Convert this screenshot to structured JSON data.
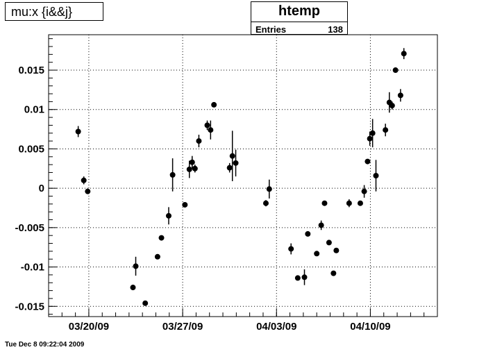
{
  "title_box": {
    "text": "mu:x {i&&j}"
  },
  "stats_box": {
    "name": "htemp",
    "entries_label": "Entries",
    "entries_value": "138"
  },
  "timestamp": "Tue Dec  8 09:22:04 2009",
  "chart_data": {
    "type": "scatter",
    "title": "mu:x {i&&j}",
    "xlabel": "",
    "ylabel": "",
    "grid": true,
    "x_axis": {
      "type": "date",
      "range": [
        "2009-03-17",
        "2009-04-15"
      ],
      "tick_labels": [
        "03/20/09",
        "03/27/09",
        "04/03/09",
        "04/10/09"
      ],
      "tick_dates": [
        "2009-03-20",
        "2009-03-27",
        "2009-04-03",
        "2009-04-10"
      ]
    },
    "ylim": [
      -0.0163,
      0.0195
    ],
    "y_tick_labels": [
      "-0.015",
      "-0.01",
      "-0.005",
      "0",
      "0.005",
      "0.01",
      "0.015"
    ],
    "y_ticks": [
      -0.015,
      -0.01,
      -0.005,
      0,
      0.005,
      0.01,
      0.015
    ],
    "points": [
      {
        "x": "2009-03-19 05:00",
        "y": 0.0072,
        "err": 0.0007
      },
      {
        "x": "2009-03-19 15:00",
        "y": 0.001,
        "err": 0.0005
      },
      {
        "x": "2009-03-19 22:00",
        "y": -0.0004,
        "err": 0.0003
      },
      {
        "x": "2009-03-23 07:00",
        "y": -0.0126,
        "err": 0.0002
      },
      {
        "x": "2009-03-23 12:00",
        "y": -0.0099,
        "err": 0.0012
      },
      {
        "x": "2009-03-24 05:00",
        "y": -0.0146,
        "err": 0.0002
      },
      {
        "x": "2009-03-25 03:00",
        "y": -0.0087,
        "err": 0.0003
      },
      {
        "x": "2009-03-25 10:00",
        "y": -0.0063,
        "err": 0.0002
      },
      {
        "x": "2009-03-25 23:00",
        "y": -0.0035,
        "err": 0.0011
      },
      {
        "x": "2009-03-26 06:00",
        "y": 0.0017,
        "err": 0.0021
      },
      {
        "x": "2009-03-27 04:00",
        "y": -0.0021,
        "err": 0.0003
      },
      {
        "x": "2009-03-27 12:00",
        "y": 0.0024,
        "err": 0.0011
      },
      {
        "x": "2009-03-27 17:00",
        "y": 0.0033,
        "err": 0.0008
      },
      {
        "x": "2009-03-27 22:00",
        "y": 0.0025,
        "err": 0.0005
      },
      {
        "x": "2009-03-28 05:00",
        "y": 0.006,
        "err": 0.0008
      },
      {
        "x": "2009-03-28 20:00",
        "y": 0.008,
        "err": 0.0006
      },
      {
        "x": "2009-03-29 02:00",
        "y": 0.0074,
        "err": 0.0012
      },
      {
        "x": "2009-03-29 08:00",
        "y": 0.0106,
        "err": 0.0003
      },
      {
        "x": "2009-03-30 12:00",
        "y": 0.0026,
        "err": 0.0006
      },
      {
        "x": "2009-03-30 17:00",
        "y": 0.0041,
        "err": 0.0032
      },
      {
        "x": "2009-03-30 23:00",
        "y": 0.0032,
        "err": 0.0017
      },
      {
        "x": "2009-04-02 05:00",
        "y": -0.0019,
        "err": 0.0004
      },
      {
        "x": "2009-04-02 11:00",
        "y": -0.0001,
        "err": 0.0012
      },
      {
        "x": "2009-04-04 02:00",
        "y": -0.0077,
        "err": 0.0007
      },
      {
        "x": "2009-04-04 14:00",
        "y": -0.0114,
        "err": 0.0003
      },
      {
        "x": "2009-04-05 02:00",
        "y": -0.0113,
        "err": 0.001
      },
      {
        "x": "2009-04-05 08:00",
        "y": -0.0058,
        "err": 0.0003
      },
      {
        "x": "2009-04-06 00:00",
        "y": -0.0083,
        "err": 0.0003
      },
      {
        "x": "2009-04-06 08:00",
        "y": -0.0047,
        "err": 0.0006
      },
      {
        "x": "2009-04-06 14:00",
        "y": -0.0019,
        "err": 0.0003
      },
      {
        "x": "2009-04-06 22:00",
        "y": -0.0069,
        "err": 0.0003
      },
      {
        "x": "2009-04-07 06:00",
        "y": -0.0108,
        "err": 0.0002
      },
      {
        "x": "2009-04-07 11:00",
        "y": -0.0079,
        "err": 0.0003
      },
      {
        "x": "2009-04-08 10:00",
        "y": -0.0019,
        "err": 0.0005
      },
      {
        "x": "2009-04-09 06:00",
        "y": -0.0019,
        "err": 0.0003
      },
      {
        "x": "2009-04-09 13:00",
        "y": -0.0004,
        "err": 0.0008
      },
      {
        "x": "2009-04-09 19:00",
        "y": 0.0034,
        "err": 0.0002
      },
      {
        "x": "2009-04-09 23:00",
        "y": 0.0063,
        "err": 0.0009
      },
      {
        "x": "2009-04-10 04:00",
        "y": 0.007,
        "err": 0.0018
      },
      {
        "x": "2009-04-10 10:00",
        "y": 0.0016,
        "err": 0.002
      },
      {
        "x": "2009-04-11 03:00",
        "y": 0.0074,
        "err": 0.0008
      },
      {
        "x": "2009-04-11 10:00",
        "y": 0.0109,
        "err": 0.0013
      },
      {
        "x": "2009-04-11 15:00",
        "y": 0.0105,
        "err": 0.0005
      },
      {
        "x": "2009-04-11 21:00",
        "y": 0.015,
        "err": 0.0002
      },
      {
        "x": "2009-04-12 06:00",
        "y": 0.0118,
        "err": 0.0008
      },
      {
        "x": "2009-04-12 12:00",
        "y": 0.0171,
        "err": 0.0007
      }
    ]
  }
}
